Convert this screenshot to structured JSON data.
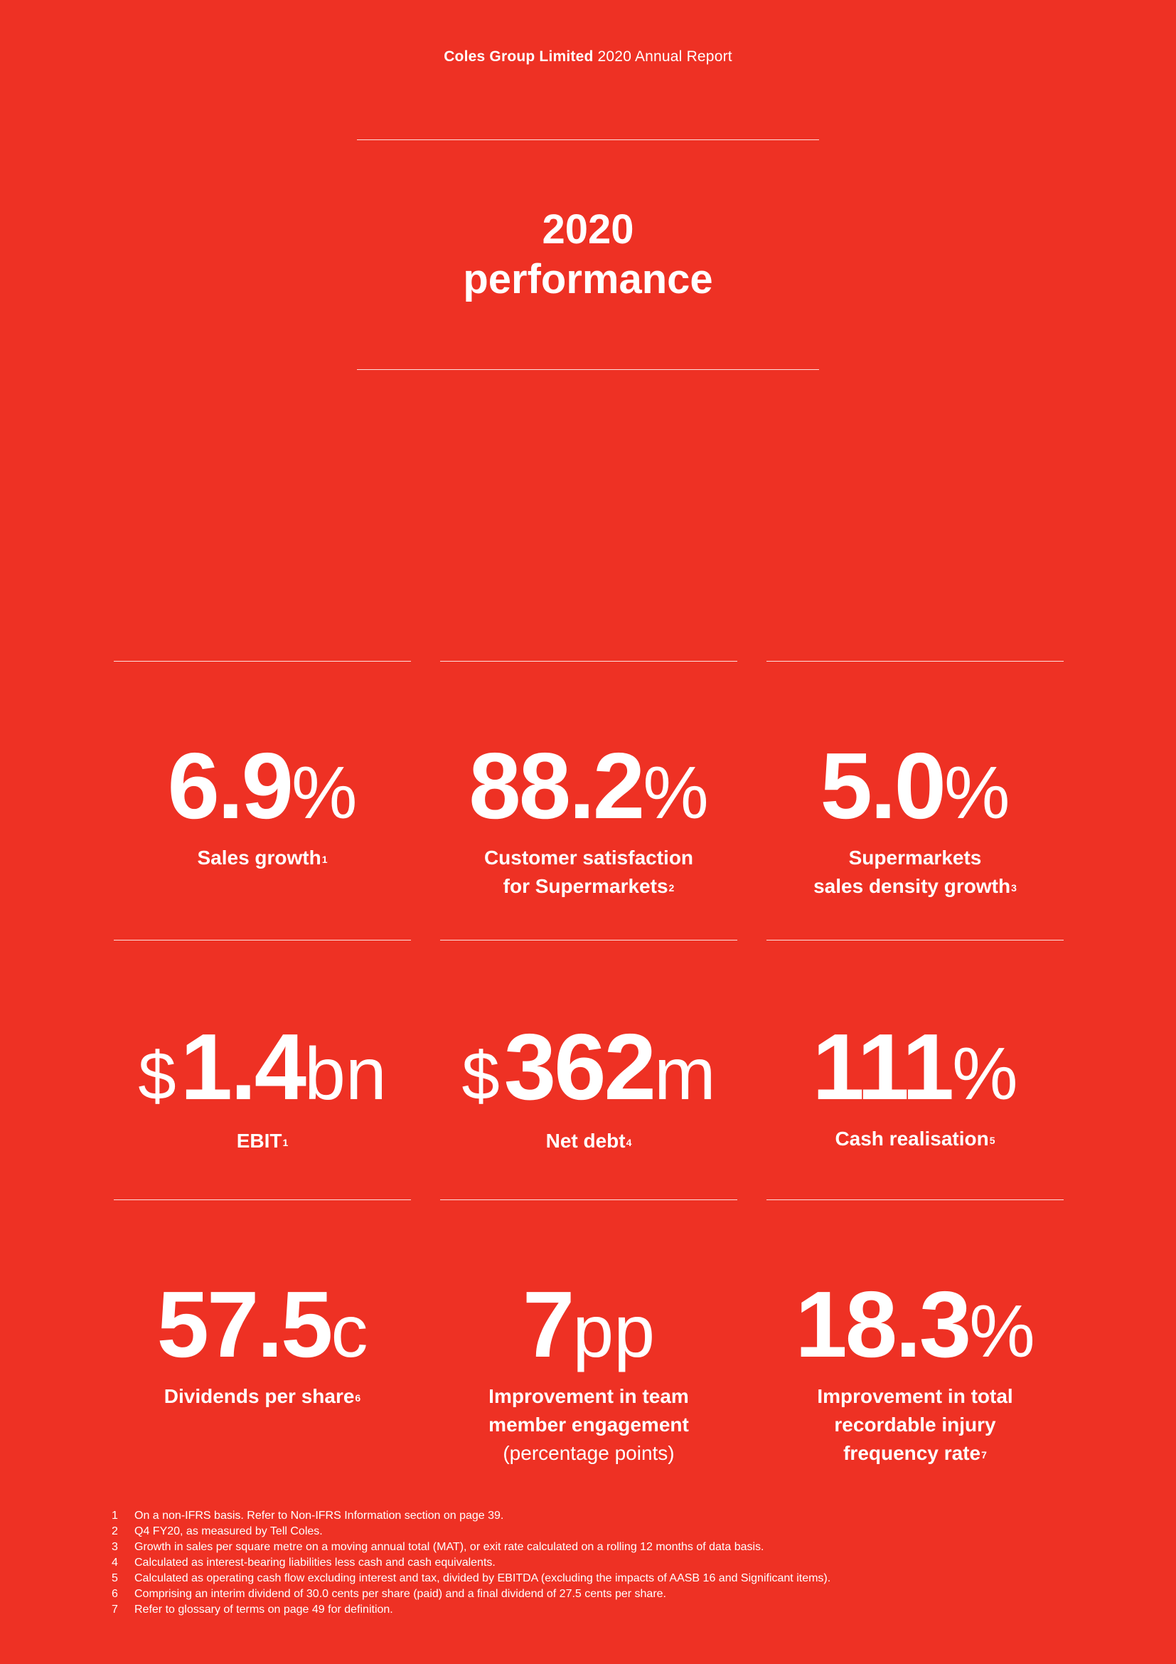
{
  "header": {
    "company": "Coles Group Limited",
    "report": " 2020 Annual Report"
  },
  "title": {
    "line1": "2020",
    "line2": "performance"
  },
  "metrics": [
    {
      "prefix": "",
      "value": "6.9",
      "unit": "%",
      "label_lines": [
        "Sales growth"
      ],
      "sup": "1"
    },
    {
      "prefix": "",
      "value": "88.2",
      "unit": "%",
      "label_lines": [
        "Customer satisfaction",
        "for Supermarkets"
      ],
      "sup": "2"
    },
    {
      "prefix": "",
      "value": "5.0",
      "unit": "%",
      "label_lines": [
        "Supermarkets",
        "sales density growth"
      ],
      "sup": "3"
    },
    {
      "prefix": "$",
      "value": "1.4",
      "unit": "bn",
      "label_lines": [
        "EBIT"
      ],
      "sup": "1"
    },
    {
      "prefix": "$",
      "value": "362",
      "unit": "m",
      "label_lines": [
        "Net debt"
      ],
      "sup": "4"
    },
    {
      "prefix": "",
      "value": "111",
      "unit": "%",
      "label_lines": [
        "Cash realisation"
      ],
      "sup": "5"
    },
    {
      "prefix": "",
      "value": "57.5",
      "unit": "c",
      "label_lines": [
        "Dividends per share"
      ],
      "sup": "6"
    },
    {
      "prefix": "",
      "value": "7",
      "unit": "pp",
      "label_lines": [
        "Improvement in team",
        "member engagement"
      ],
      "sup": "",
      "extra": "(percentage points)"
    },
    {
      "prefix": "",
      "value": "18.3",
      "unit": "%",
      "label_lines": [
        "Improvement in total",
        "recordable injury",
        "frequency rate"
      ],
      "sup": "7"
    }
  ],
  "footnotes": [
    {
      "num": "1",
      "text": "On a non-IFRS basis. Refer to Non-IFRS Information section on page 39."
    },
    {
      "num": "2",
      "text": "Q4 FY20, as measured by Tell Coles."
    },
    {
      "num": "3",
      "text": "Growth in sales per square metre on a moving annual total (MAT), or exit rate calculated on a rolling 12 months of data basis."
    },
    {
      "num": "4",
      "text": "Calculated as interest-bearing liabilities less cash and cash equivalents."
    },
    {
      "num": "5",
      "text": "Calculated as operating cash flow excluding interest and tax, divided by EBITDA (excluding the impacts of AASB 16 and Significant items)."
    },
    {
      "num": "6",
      "text": "Comprising an interim dividend of 30.0 cents per share (paid) and a final dividend of 27.5 cents per share."
    },
    {
      "num": "7",
      "text": "Refer to glossary of terms on page 49 for definition."
    }
  ]
}
